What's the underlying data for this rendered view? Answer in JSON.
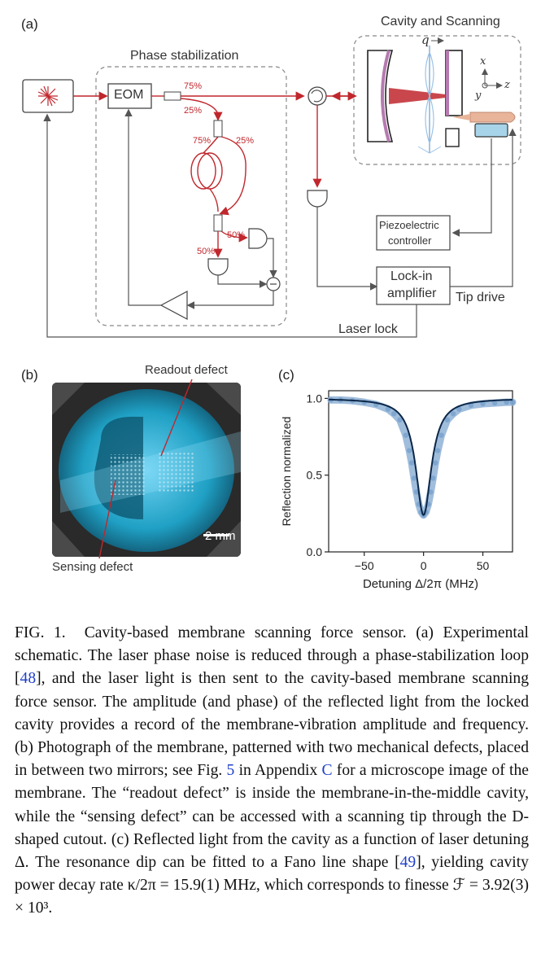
{
  "panels": {
    "a": "(a)",
    "b": "(b)",
    "c": "(c)"
  },
  "schematic": {
    "cavity_title": "Cavity and Scanning",
    "phase_title": "Phase stabilization",
    "eom": "EOM",
    "split_75_a": "75%",
    "split_25_a": "25%",
    "split_75_b": "75%",
    "split_25_b": "25%",
    "split_50_a": "50%",
    "split_50_b": "50%",
    "piezo_line1": "Piezoelectric",
    "piezo_line2": "controller",
    "lockin_line1": "Lock-in",
    "lockin_line2": "amplifier",
    "tip_drive": "Tip drive",
    "laser_lock": "Laser lock",
    "axis_q": "q",
    "axis_x": "x",
    "axis_y": "y",
    "axis_z": "z",
    "minus": "−"
  },
  "photo": {
    "readout_label": "Readout defect",
    "sensing_label": "Sensing defect",
    "scale_label": "2 mm"
  },
  "chart_data": {
    "type": "line",
    "title": "",
    "xlabel": "Detuning Δ/2π (MHz)",
    "ylabel": "Reflection normalized",
    "xlim": [
      -80,
      75
    ],
    "ylim": [
      0,
      1.05
    ],
    "xticks": [
      "−50",
      "0",
      "50"
    ],
    "yticks": [
      "0.0",
      "0.5",
      "1.0"
    ],
    "fit": {
      "center": 0,
      "width_hwhm": 8,
      "depth": 0.76,
      "baseline": 1.0
    },
    "x": [
      -78,
      -70,
      -60,
      -50,
      -40,
      -30,
      -25,
      -20,
      -15,
      -12,
      -10,
      -8,
      -6,
      -4,
      -2,
      0,
      2,
      4,
      6,
      8,
      10,
      12,
      15,
      20,
      25,
      30,
      40,
      50,
      60,
      70,
      75
    ],
    "y": [
      0.99,
      0.99,
      0.985,
      0.975,
      0.96,
      0.93,
      0.9,
      0.86,
      0.76,
      0.66,
      0.58,
      0.48,
      0.39,
      0.31,
      0.26,
      0.24,
      0.26,
      0.31,
      0.39,
      0.48,
      0.58,
      0.66,
      0.76,
      0.86,
      0.9,
      0.93,
      0.955,
      0.965,
      0.97,
      0.975,
      0.975
    ]
  },
  "caption": {
    "lead": "FIG. 1.",
    "title": "Cavity-based membrane scanning force sensor.",
    "part_a": "(a) Experimental schematic. The laser phase noise is reduced through a phase-stabilization loop [",
    "ref48": "48",
    "part_b": "], and the laser light is then sent to the cavity-based membrane scanning force sensor. The amplitude (and phase) of the reflected light from the locked cavity provides a record of the membrane-vibration amplitude and frequency. (b) Photograph of the membrane, patterned with two mechanical defects, placed in between two mirrors; see Fig. ",
    "ref5": "5",
    "part_c": " in Appendix ",
    "refC": "C",
    "part_d": " for a microscope image of the membrane. The “readout defect” is inside the membrane-in-the-middle cavity, while the “sensing defect” can be accessed with a scanning tip through the D-shaped cutout. (c) Reflected light from the cavity as a function of laser detuning Δ. The resonance dip can be fitted to a Fano line shape [",
    "ref49": "49",
    "part_e": "], yielding cavity power decay rate κ/2π = 15.9(1) MHz, which corresponds to finesse ℱ = 3.92(3) × 10³."
  }
}
